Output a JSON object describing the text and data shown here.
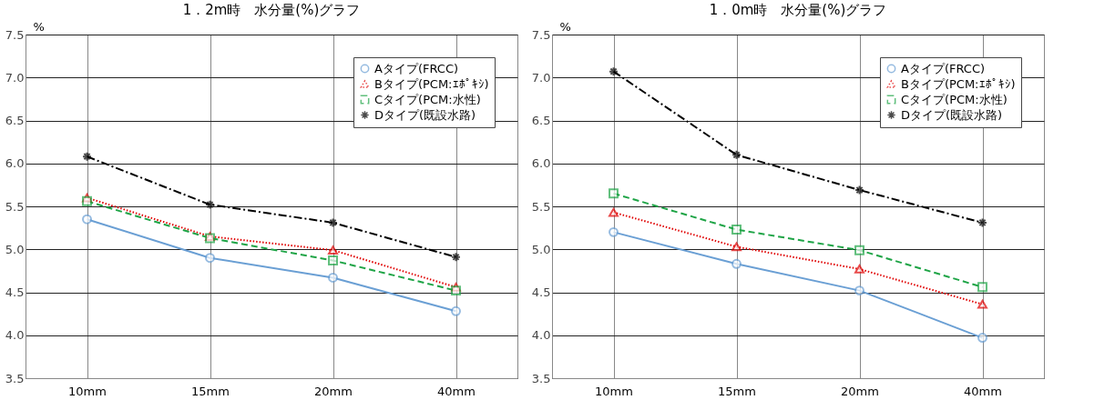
{
  "chart_data": [
    {
      "type": "line",
      "title": "1．2m時　水分量(%)グラフ",
      "ylabel": "%",
      "categories": [
        "10mm",
        "15mm",
        "20mm",
        "40mm"
      ],
      "ylim": [
        3.5,
        7.5
      ],
      "yticks": [
        3.5,
        {
          "value": 4,
          "label": "4.0"
        },
        4.5,
        {
          "value": 5,
          "label": "5.0"
        },
        5.5,
        {
          "value": 6,
          "label": "6.0"
        },
        6.5,
        {
          "value": 7,
          "label": "7.0"
        },
        7.5
      ],
      "grid": true,
      "legend": "top right",
      "series": [
        {
          "name": "Aタイプ(FRCC)",
          "color": "#6a9fd4",
          "marker": "circle",
          "line_style": "solid",
          "values": [
            5.35,
            4.9,
            4.67,
            4.28
          ]
        },
        {
          "name": "Bタイプ(PCM:ｴﾎﾟｷｼ)",
          "color": "#e00000",
          "marker": "triangle",
          "line_style": "dotted",
          "values": [
            5.6,
            5.15,
            4.99,
            4.56
          ]
        },
        {
          "name": "Cタイプ(PCM:水性)",
          "color": "#1ea446",
          "marker": "square",
          "line_style": "dashed",
          "values": [
            5.56,
            5.13,
            4.87,
            4.52
          ]
        },
        {
          "name": "Dタイプ(既設水路)",
          "color": "#000000",
          "marker": "cross",
          "line_style": "dashdot",
          "values": [
            6.08,
            5.52,
            5.31,
            4.91
          ]
        }
      ]
    },
    {
      "type": "line",
      "title": "1．0m時　水分量(%)グラフ",
      "ylabel": "%",
      "categories": [
        "10mm",
        "15mm",
        "20mm",
        "40mm"
      ],
      "ylim": [
        3.5,
        7.5
      ],
      "yticks": [
        3.5,
        {
          "value": 4,
          "label": "4.0"
        },
        4.5,
        {
          "value": 5,
          "label": "5.0"
        },
        5.5,
        {
          "value": 6,
          "label": "6.0"
        },
        6.5,
        {
          "value": 7,
          "label": "7.0"
        },
        7.5
      ],
      "grid": true,
      "legend": "top right",
      "series": [
        {
          "name": "Aタイプ(FRCC)",
          "color": "#6a9fd4",
          "marker": "circle",
          "line_style": "solid",
          "values": [
            5.2,
            4.83,
            4.52,
            3.97
          ]
        },
        {
          "name": "Bタイプ(PCM:ｴﾎﾟｷｼ)",
          "color": "#e00000",
          "marker": "triangle",
          "line_style": "dotted",
          "values": [
            5.43,
            5.03,
            4.77,
            4.36
          ]
        },
        {
          "name": "Cタイプ(PCM:水性)",
          "color": "#1ea446",
          "marker": "square",
          "line_style": "dashed",
          "values": [
            5.65,
            5.23,
            4.99,
            4.56
          ]
        },
        {
          "name": "Dタイプ(既設水路)",
          "color": "#000000",
          "marker": "cross",
          "line_style": "dashdot",
          "values": [
            7.07,
            6.1,
            5.69,
            5.31
          ]
        }
      ]
    }
  ]
}
